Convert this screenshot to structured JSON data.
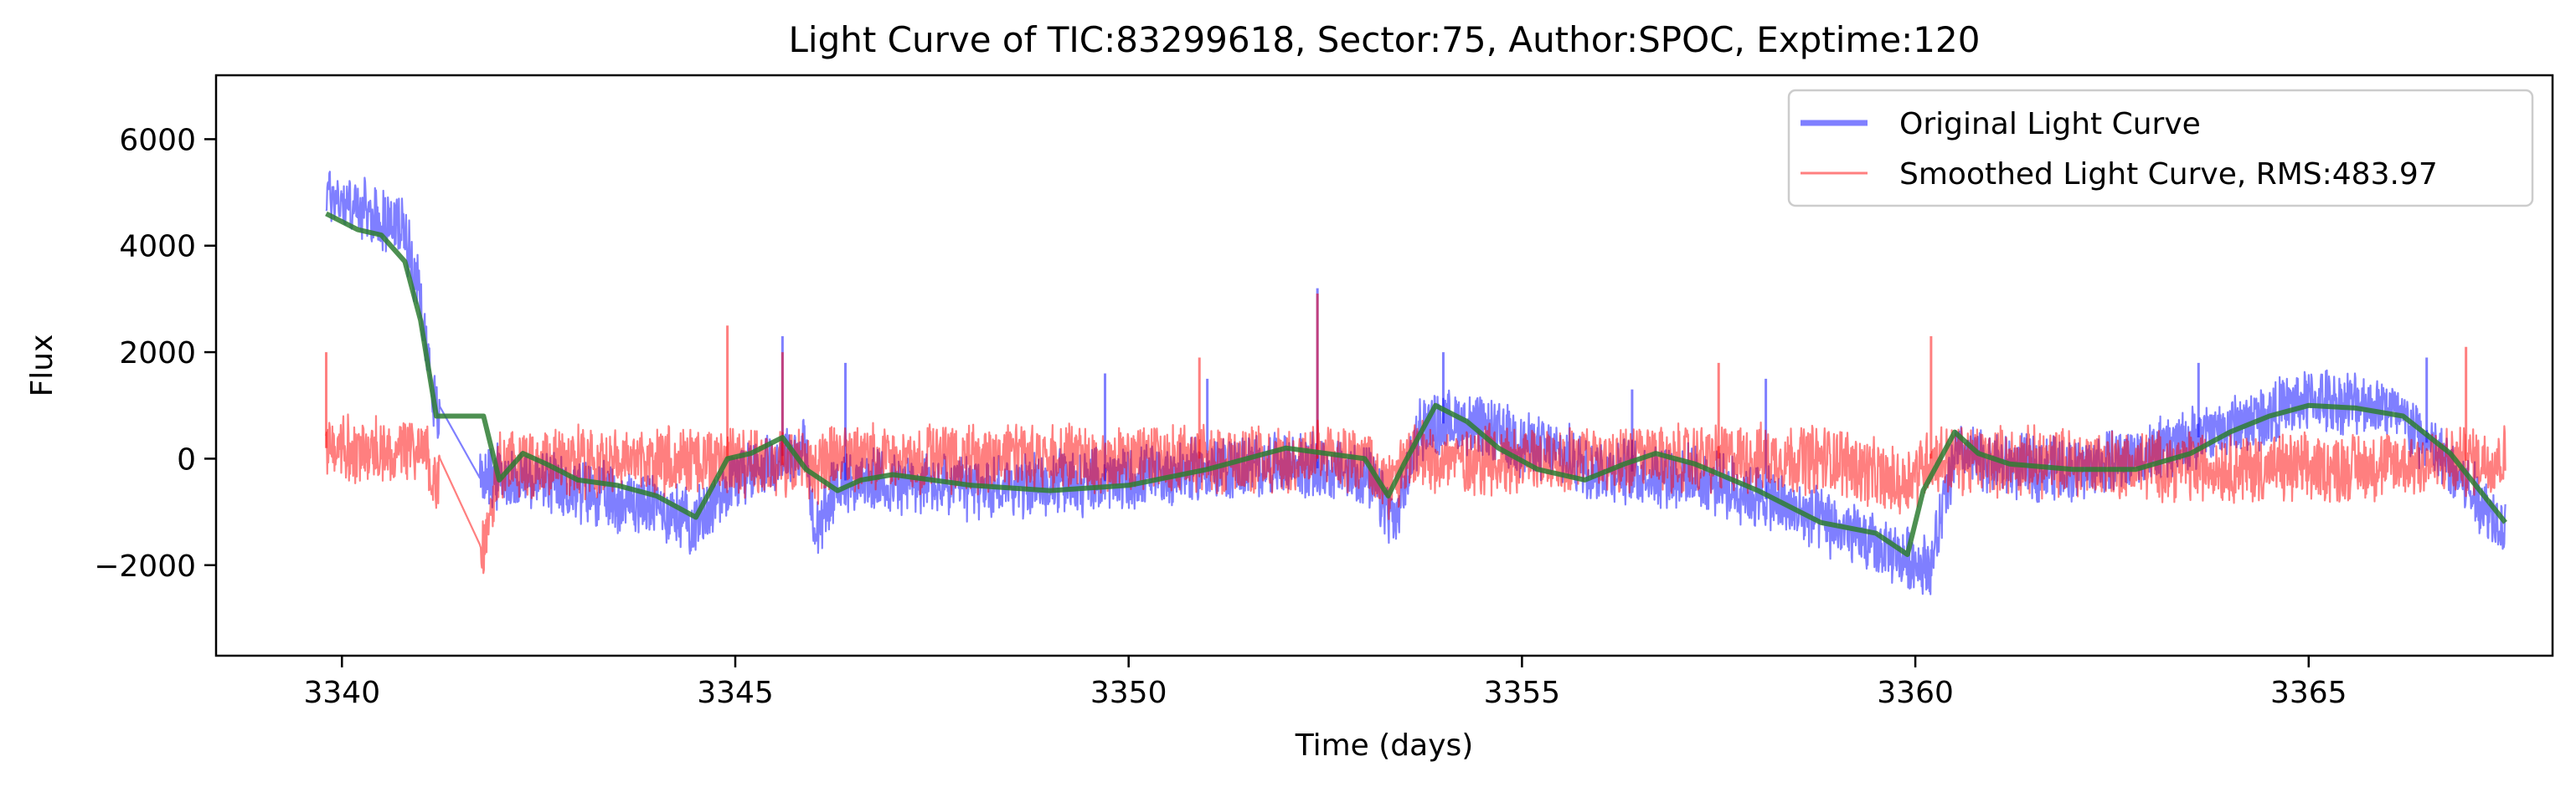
{
  "chart_data": {
    "type": "line",
    "title": "Light Curve of TIC:83299618, Sector:75, Author:SPOC, Exptime:120",
    "xlabel": "Time (days)",
    "ylabel": "Flux",
    "xlim": [
      3338.4,
      3368.1
    ],
    "ylim": [
      -3700,
      7200
    ],
    "xticks": [
      3340,
      3345,
      3350,
      3355,
      3360,
      3365
    ],
    "yticks": [
      -2000,
      0,
      2000,
      4000,
      6000
    ],
    "xtick_labels": [
      "3340",
      "3345",
      "3350",
      "3355",
      "3360",
      "3365"
    ],
    "ytick_labels": [
      "−2000",
      "0",
      "2000",
      "4000",
      "6000"
    ],
    "grid": false,
    "legend_position": "top-right",
    "series": [
      {
        "name": "Original Light Curve",
        "color": "#0000ff",
        "opacity": 0.5,
        "style": "noisy",
        "trend": [
          [
            3339.8,
            5000
          ],
          [
            3340.3,
            4600
          ],
          [
            3340.8,
            4300
          ],
          [
            3341.0,
            3000
          ],
          [
            3341.2,
            800
          ],
          [
            3341.8,
            -300
          ],
          [
            3342.3,
            -400
          ],
          [
            3343.0,
            -600
          ],
          [
            3344.0,
            -900
          ],
          [
            3344.5,
            -1200
          ],
          [
            3345.0,
            -300
          ],
          [
            3345.5,
            0
          ],
          [
            3345.9,
            200
          ],
          [
            3346.0,
            -1500
          ],
          [
            3346.3,
            -400
          ],
          [
            3348.0,
            -550
          ],
          [
            3350.0,
            -400
          ],
          [
            3351.0,
            -200
          ],
          [
            3352.0,
            -100
          ],
          [
            3353.0,
            -300
          ],
          [
            3353.4,
            -1200
          ],
          [
            3353.7,
            600
          ],
          [
            3354.2,
            700
          ],
          [
            3355.0,
            300
          ],
          [
            3356.0,
            -200
          ],
          [
            3357.0,
            -300
          ],
          [
            3358.0,
            -700
          ],
          [
            3359.0,
            -1300
          ],
          [
            3359.7,
            -1800
          ],
          [
            3360.2,
            -2000
          ],
          [
            3360.5,
            100
          ],
          [
            3361.0,
            -100
          ],
          [
            3362.0,
            -200
          ],
          [
            3363.0,
            100
          ],
          [
            3364.0,
            600
          ],
          [
            3365.0,
            1100
          ],
          [
            3366.0,
            1000
          ],
          [
            3366.5,
            300
          ],
          [
            3367.0,
            -500
          ],
          [
            3367.5,
            -1300
          ]
        ],
        "amplitude": 520,
        "spikes": [
          [
            3345.6,
            2300
          ],
          [
            3346.4,
            1800
          ],
          [
            3349.7,
            1600
          ],
          [
            3351.0,
            1500
          ],
          [
            3352.4,
            3200
          ],
          [
            3354.0,
            2000
          ],
          [
            3356.4,
            1300
          ],
          [
            3358.1,
            1500
          ],
          [
            3363.6,
            1800
          ],
          [
            3366.5,
            1900
          ]
        ]
      },
      {
        "name": "Smoothed Light Curve, RMS:483.97",
        "color": "#ff0000",
        "opacity": 0.5,
        "style": "noisy",
        "trend": [
          [
            3339.8,
            200
          ],
          [
            3340.5,
            150
          ],
          [
            3341.0,
            200
          ],
          [
            3341.8,
            -1800
          ],
          [
            3342.0,
            -100
          ],
          [
            3345.0,
            0
          ],
          [
            3346.0,
            -200
          ],
          [
            3346.3,
            0
          ],
          [
            3350.0,
            0
          ],
          [
            3353.0,
            0
          ],
          [
            3353.3,
            -600
          ],
          [
            3353.6,
            0
          ],
          [
            3356.0,
            0
          ],
          [
            3359.0,
            0
          ],
          [
            3359.8,
            -500
          ],
          [
            3360.2,
            0
          ],
          [
            3365.0,
            -200
          ],
          [
            3367.5,
            0
          ]
        ],
        "amplitude": 560,
        "spikes": [
          [
            3339.8,
            2000
          ],
          [
            3344.9,
            2500
          ],
          [
            3345.6,
            2000
          ],
          [
            3350.9,
            1900
          ],
          [
            3352.4,
            3100
          ],
          [
            3357.5,
            1800
          ],
          [
            3360.2,
            2300
          ],
          [
            3367.0,
            2100
          ]
        ]
      },
      {
        "name": "",
        "color": "#2e7d32",
        "opacity": 0.85,
        "style": "smooth",
        "x": [
          3339.8,
          3340.2,
          3340.5,
          3340.8,
          3341.0,
          3341.2,
          3341.8,
          3342.0,
          3342.3,
          3342.6,
          3343.0,
          3343.5,
          3344.0,
          3344.5,
          3344.9,
          3345.2,
          3345.6,
          3345.9,
          3346.3,
          3346.6,
          3347.0,
          3348.0,
          3349.0,
          3350.0,
          3351.0,
          3352.0,
          3353.0,
          3353.3,
          3353.5,
          3353.9,
          3354.3,
          3354.7,
          3355.2,
          3355.8,
          3356.3,
          3356.7,
          3357.2,
          3358.0,
          3358.8,
          3359.5,
          3359.9,
          3360.1,
          3360.5,
          3360.8,
          3361.2,
          3362.0,
          3362.8,
          3363.5,
          3364.0,
          3364.5,
          3365.0,
          3365.6,
          3366.2,
          3366.8,
          3367.5
        ],
        "y": [
          4600,
          4300,
          4200,
          3700,
          2600,
          800,
          800,
          -400,
          100,
          -100,
          -400,
          -500,
          -700,
          -1100,
          0,
          100,
          400,
          -200,
          -600,
          -400,
          -300,
          -500,
          -600,
          -500,
          -200,
          200,
          0,
          -700,
          -100,
          1000,
          700,
          200,
          -200,
          -400,
          -100,
          100,
          -100,
          -600,
          -1200,
          -1400,
          -1800,
          -600,
          500,
          100,
          -100,
          -200,
          -200,
          100,
          500,
          800,
          1000,
          950,
          800,
          100,
          -1200
        ]
      }
    ]
  }
}
